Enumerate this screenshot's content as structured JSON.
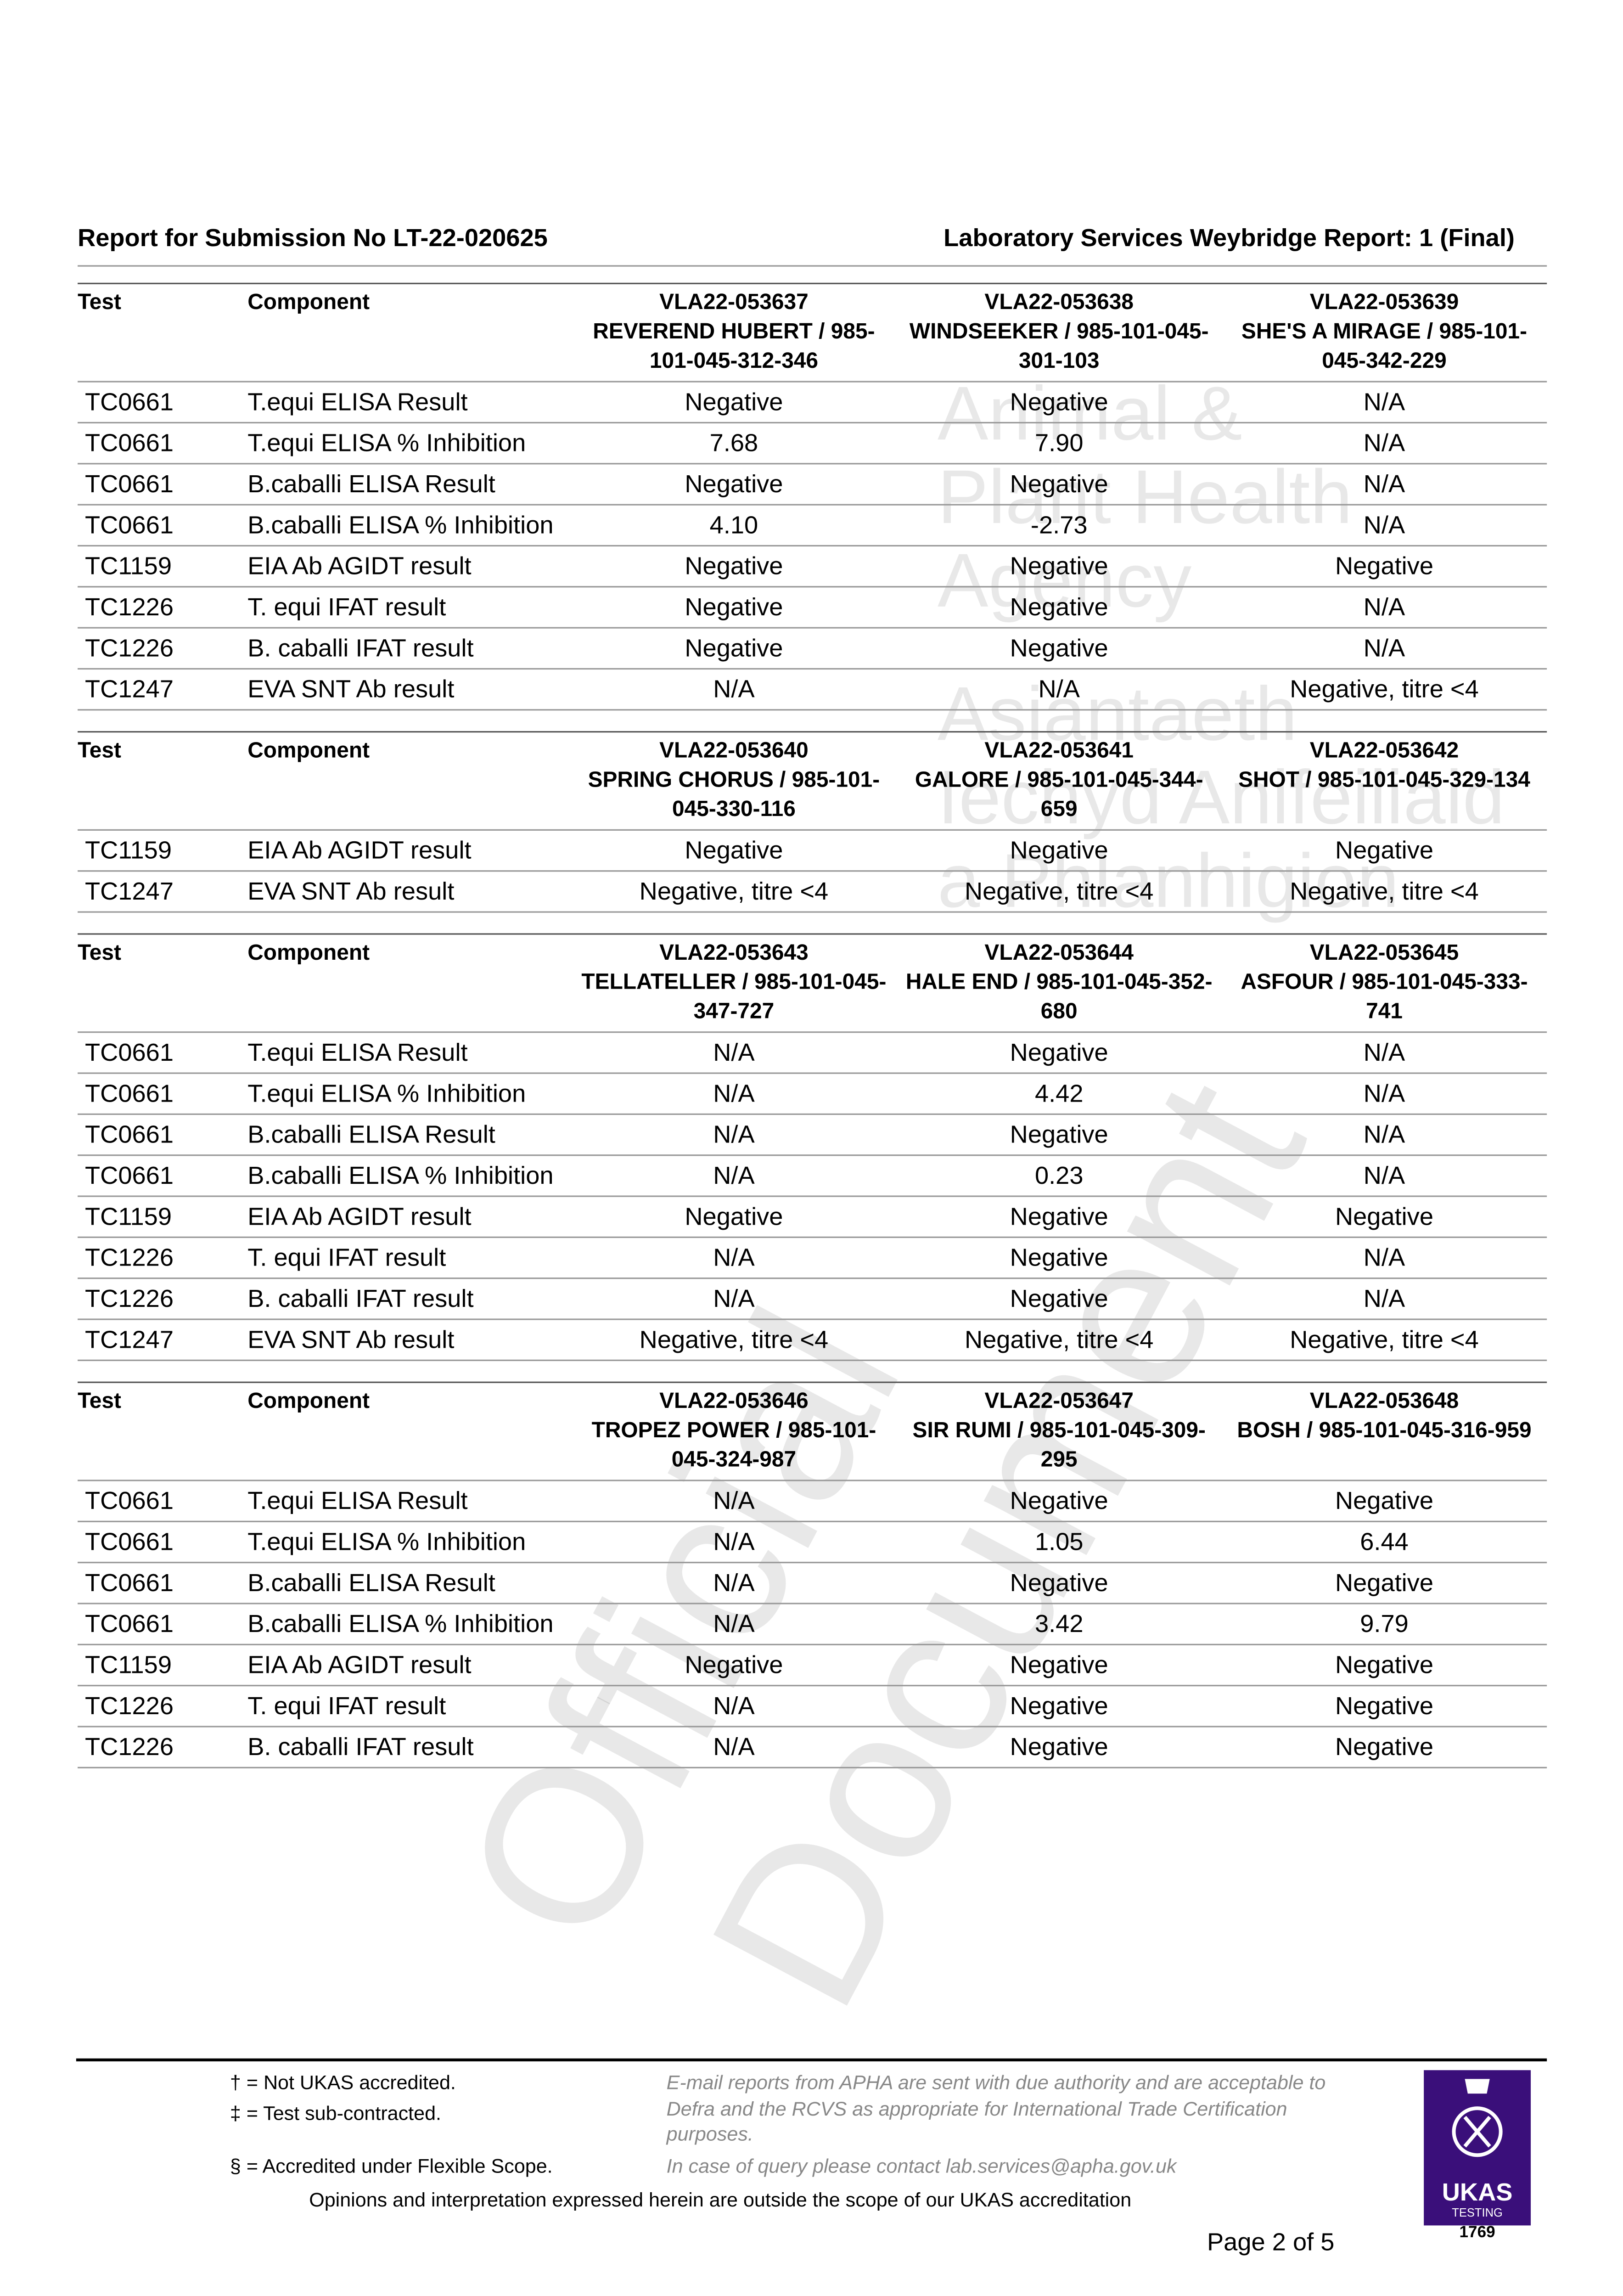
{
  "header": {
    "left": "Report for Submission No LT-22-020625",
    "right": "Laboratory Services Weybridge Report: 1 (Final)"
  },
  "watermark": {
    "lines": [
      "Animal &",
      "Plant Health",
      "Agency",
      "Asiantaeth",
      "Iechyd Anifeiliaid",
      "a Phlanhigion"
    ],
    "diagonal": [
      "Official",
      "Document"
    ]
  },
  "columns": {
    "test": "Test",
    "component": "Component"
  },
  "sections": [
    {
      "samples": [
        "VLA22-053637\nREVEREND HUBERT / 985-101-045-312-346",
        "VLA22-053638\nWINDSEEKER / 985-101-045-301-103",
        "VLA22-053639\nSHE'S A MIRAGE / 985-101-045-342-229"
      ],
      "rows": [
        [
          "TC0661",
          "T.equi ELISA Result",
          "Negative",
          "Negative",
          "N/A"
        ],
        [
          "TC0661",
          "T.equi ELISA % Inhibition",
          "7.68",
          "7.90",
          "N/A"
        ],
        [
          "TC0661",
          "B.caballi ELISA Result",
          "Negative",
          "Negative",
          "N/A"
        ],
        [
          "TC0661",
          "B.caballi ELISA % Inhibition",
          "4.10",
          "-2.73",
          "N/A"
        ],
        [
          "TC1159",
          "EIA Ab AGIDT result",
          "Negative",
          "Negative",
          "Negative"
        ],
        [
          "TC1226",
          "T. equi IFAT result",
          "Negative",
          "Negative",
          "N/A"
        ],
        [
          "TC1226",
          "B. caballi IFAT result",
          "Negative",
          "Negative",
          "N/A"
        ],
        [
          "TC1247",
          "EVA SNT Ab result",
          "N/A",
          "N/A",
          "Negative, titre <4"
        ]
      ]
    },
    {
      "samples": [
        "VLA22-053640\nSPRING CHORUS / 985-101-045-330-116",
        "VLA22-053641\nGALORE / 985-101-045-344-659",
        "VLA22-053642\nSHOT / 985-101-045-329-134"
      ],
      "rows": [
        [
          "TC1159",
          "EIA Ab AGIDT result",
          "Negative",
          "Negative",
          "Negative"
        ],
        [
          "TC1247",
          "EVA SNT Ab result",
          "Negative, titre <4",
          "Negative, titre <4",
          "Negative, titre <4"
        ]
      ]
    },
    {
      "samples": [
        "VLA22-053643\nTELLATELLER / 985-101-045-347-727",
        "VLA22-053644\nHALE END / 985-101-045-352-680",
        "VLA22-053645\nASFOUR / 985-101-045-333-741"
      ],
      "rows": [
        [
          "TC0661",
          "T.equi ELISA Result",
          "N/A",
          "Negative",
          "N/A"
        ],
        [
          "TC0661",
          "T.equi ELISA % Inhibition",
          "N/A",
          "4.42",
          "N/A"
        ],
        [
          "TC0661",
          "B.caballi ELISA Result",
          "N/A",
          "Negative",
          "N/A"
        ],
        [
          "TC0661",
          "B.caballi ELISA % Inhibition",
          "N/A",
          "0.23",
          "N/A"
        ],
        [
          "TC1159",
          "EIA Ab AGIDT result",
          "Negative",
          "Negative",
          "Negative"
        ],
        [
          "TC1226",
          "T. equi IFAT result",
          "N/A",
          "Negative",
          "N/A"
        ],
        [
          "TC1226",
          "B. caballi IFAT result",
          "N/A",
          "Negative",
          "N/A"
        ],
        [
          "TC1247",
          "EVA SNT Ab result",
          "Negative, titre <4",
          "Negative, titre <4",
          "Negative, titre <4"
        ]
      ]
    },
    {
      "samples": [
        "VLA22-053646\nTROPEZ POWER / 985-101-045-324-987",
        "VLA22-053647\nSIR RUMI / 985-101-045-309-295",
        "VLA22-053648\nBOSH / 985-101-045-316-959"
      ],
      "rows": [
        [
          "TC0661",
          "T.equi ELISA Result",
          "N/A",
          "Negative",
          "Negative"
        ],
        [
          "TC0661",
          "T.equi ELISA % Inhibition",
          "N/A",
          "1.05",
          "6.44"
        ],
        [
          "TC0661",
          "B.caballi ELISA Result",
          "N/A",
          "Negative",
          "Negative"
        ],
        [
          "TC0661",
          "B.caballi ELISA % Inhibition",
          "N/A",
          "3.42",
          "9.79"
        ],
        [
          "TC1159",
          "EIA Ab AGIDT result",
          "Negative",
          "Negative",
          "Negative"
        ],
        [
          "TC1226",
          "T. equi IFAT result",
          "N/A",
          "Negative",
          "Negative"
        ],
        [
          "TC1226",
          "B. caballi IFAT result",
          "N/A",
          "Negative",
          "Negative"
        ]
      ]
    }
  ],
  "footer": {
    "dagger": "† = Not UKAS accredited.",
    "ddagger": "‡ = Test sub-contracted.",
    "section": "§ = Accredited under Flexible Scope.",
    "email_note": "E-mail reports from APHA are sent with due authority and are acceptable to Defra and the RCVS as appropriate for International Trade Certification purposes.",
    "query": "In case of query please contact lab.services@apha.gov.uk",
    "opinions": "Opinions and interpretation expressed herein are outside the scope of our UKAS accreditation",
    "page": "Page 2 of  5",
    "ukas": {
      "name": "UKAS",
      "sub": "TESTING",
      "number": "1769",
      "color": "#3a0f7a"
    }
  }
}
